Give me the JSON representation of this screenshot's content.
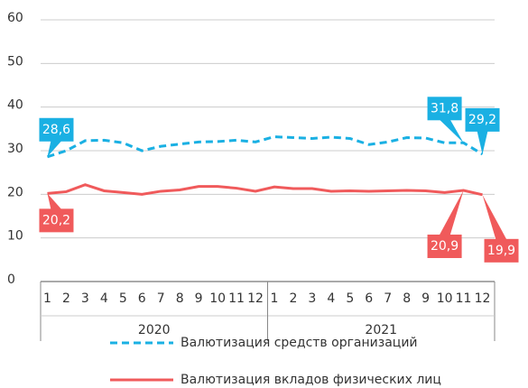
{
  "chart_data": {
    "type": "line",
    "categories": [
      "1",
      "2",
      "3",
      "4",
      "5",
      "6",
      "7",
      "8",
      "9",
      "10",
      "11",
      "12",
      "1",
      "2",
      "3",
      "4",
      "5",
      "6",
      "7",
      "8",
      "9",
      "10",
      "11",
      "12"
    ],
    "x_groups": [
      "2020",
      "2021"
    ],
    "series": [
      {
        "name": "Валютизация средств организаций",
        "color": "#1ab0e3",
        "dashed": true,
        "values": [
          28.6,
          30,
          32.3,
          32.4,
          31.8,
          30,
          31,
          31.5,
          32,
          32.1,
          32.4,
          32,
          33.2,
          33,
          32.8,
          33.1,
          32.8,
          31.4,
          32,
          33,
          32.9,
          31.8,
          31.8,
          29.2
        ],
        "value_labels": [
          "28,6",
          null,
          null,
          null,
          null,
          null,
          null,
          null,
          null,
          null,
          null,
          null,
          null,
          null,
          null,
          null,
          null,
          null,
          null,
          null,
          null,
          null,
          "31,8",
          "29,2"
        ]
      },
      {
        "name": "Валютизация вкладов физических лиц",
        "color": "#f05a5b",
        "dashed": false,
        "values": [
          20.2,
          20.6,
          22.2,
          20.8,
          20.4,
          20,
          20.7,
          21,
          21.8,
          21.8,
          21.4,
          20.7,
          21.7,
          21.3,
          21.3,
          20.7,
          20.8,
          20.7,
          20.8,
          20.9,
          20.8,
          20.4,
          20.9,
          19.9
        ],
        "value_labels": [
          "20,2",
          null,
          null,
          null,
          null,
          null,
          null,
          null,
          null,
          null,
          null,
          null,
          null,
          null,
          null,
          null,
          null,
          null,
          null,
          null,
          null,
          null,
          "20,9",
          "19,9"
        ]
      }
    ],
    "ylim": [
      0,
      60
    ],
    "yticks": [
      0,
      10,
      20,
      30,
      40,
      50,
      60
    ],
    "grid": true
  }
}
